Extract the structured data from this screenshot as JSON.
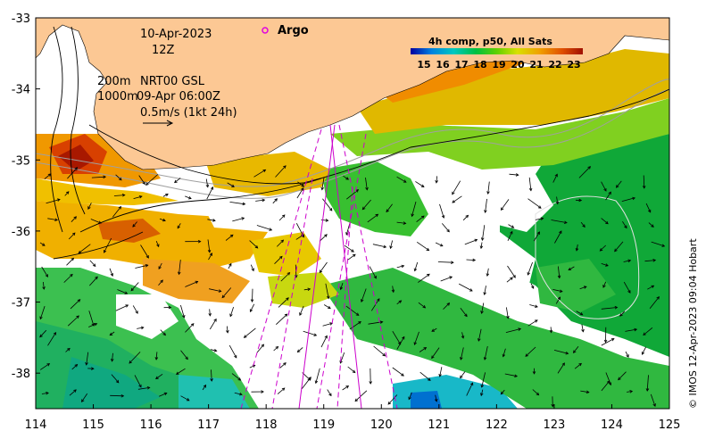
{
  "map": {
    "type": "sea-surface-temperature-map",
    "date": "10-Apr-2023",
    "hour": "12Z",
    "isobath_200_label": "200m",
    "isobath_1000_label": "1000m",
    "currents_label": "NRT00 GSL",
    "currents_time": "09-Apr 06:00Z",
    "scale_label": "0.5m/s (1kt 24h)",
    "argo_label": "Argo",
    "colorbar_title": "4h comp, p50, All Sats",
    "colorbar_ticks": [
      "15",
      "16",
      "17",
      "18",
      "19",
      "20",
      "21",
      "22",
      "23"
    ],
    "credit": "© IMOS 12-Apr-2023 09:04 Hobart",
    "lon_ticks": [
      "114",
      "115",
      "116",
      "117",
      "118",
      "119",
      "120",
      "121",
      "122",
      "123",
      "124",
      "125"
    ],
    "lat_ticks": [
      "-33",
      "-34",
      "-35",
      "-36",
      "-37",
      "-38"
    ],
    "extent": {
      "lon": [
        114,
        125
      ],
      "lat": [
        -38.5,
        -33
      ]
    },
    "colors": {
      "land": "#fcc894",
      "argo": "#e000e0",
      "track": "#cc00cc"
    }
  }
}
